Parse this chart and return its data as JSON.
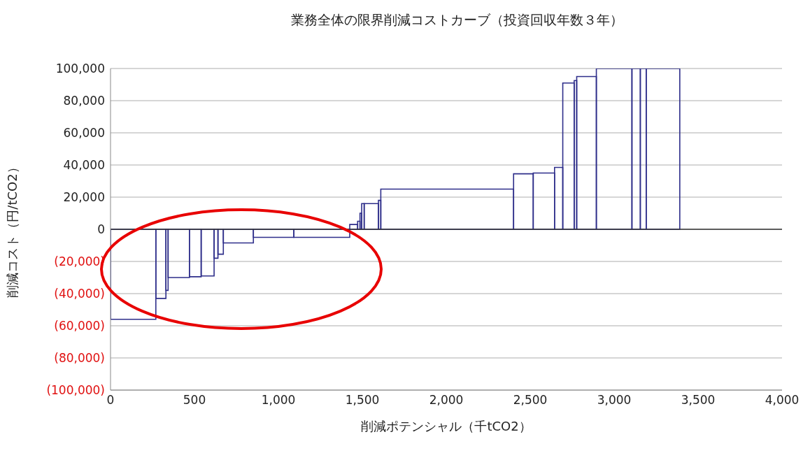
{
  "chart_data": {
    "type": "histogram",
    "title": "業務全体の限界削減コストカーブ（投資回収年数３年）",
    "xlabel": "削減ポテンシャル（千tCO2）",
    "ylabel": "削減コスト（円/tCO2）",
    "color": "#2e2e8a",
    "bins": [
      0,
      270,
      330,
      343,
      470,
      540,
      617,
      640,
      672,
      851,
      1092,
      1425,
      1472,
      1486,
      1496,
      1511,
      1596,
      1610,
      2401,
      2518,
      2645,
      2694,
      2762,
      2777,
      2894,
      3106,
      3156,
      3191,
      3391
    ],
    "values": [
      -56000,
      -43000,
      -38000,
      -30000,
      -29500,
      -29000,
      -18000,
      -15500,
      -8500,
      -5000,
      -5000,
      3000,
      5000,
      10000,
      16000,
      16000,
      18000,
      25000,
      34500,
      35000,
      38500,
      91000,
      92500,
      95000,
      100000,
      100000,
      100000,
      100000
    ],
    "xlim": [
      0,
      4000
    ],
    "xticks": [
      0,
      500,
      {
        "value": 1000,
        "label": "1,000"
      },
      {
        "value": 1500,
        "label": "1,500"
      },
      {
        "value": 2000,
        "label": "2,000"
      },
      {
        "value": 2500,
        "label": "2,500"
      },
      {
        "value": 3000,
        "label": "3,000"
      },
      {
        "value": 3500,
        "label": "3,500"
      },
      {
        "value": 4000,
        "label": "4,000"
      }
    ],
    "ylim": [
      -100000,
      100000
    ],
    "yticks": [
      {
        "value": -100000,
        "label": "(100,000)"
      },
      {
        "value": -80000,
        "label": "(80,000)"
      },
      {
        "value": -60000,
        "label": "(60,000)"
      },
      {
        "value": -40000,
        "label": "(40,000)"
      },
      {
        "value": -20000,
        "label": "(20,000)"
      },
      0,
      {
        "value": 20000,
        "label": "20,000"
      },
      {
        "value": 40000,
        "label": "40,000"
      },
      {
        "value": 60000,
        "label": "60,000"
      },
      {
        "value": 80000,
        "label": "80,000"
      },
      {
        "value": 100000,
        "label": "100,000"
      }
    ],
    "grid": "y"
  }
}
